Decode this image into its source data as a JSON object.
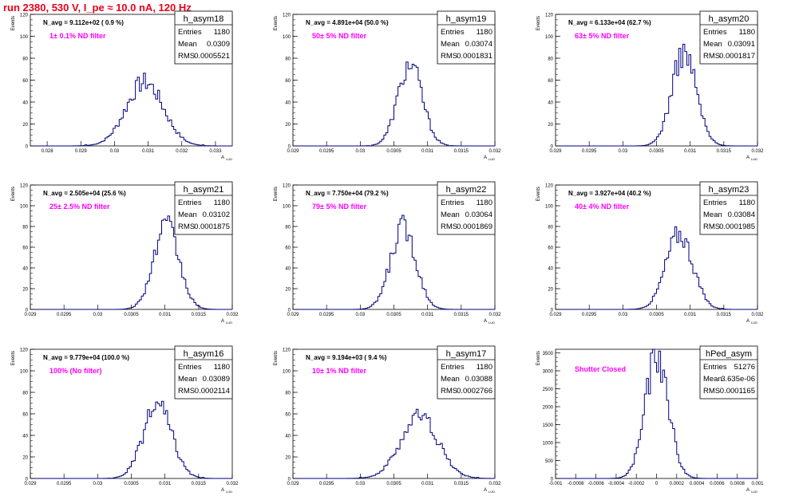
{
  "page_title": "run 2380,   530 V, I_pe ≈ 10.0 nA, 120 Hz",
  "ui": {
    "ylabel": "Events",
    "xlabel_main": "A",
    "xlabel_sub": "LUD",
    "stat_labels": [
      "Entries",
      "Mean",
      "RMS"
    ]
  },
  "colors": {
    "title": "#e8001a",
    "histogram": "#00007f",
    "filter_label": "#ff00ff",
    "frame": "#000000"
  },
  "chart_data": [
    {
      "type": "histogram",
      "name": "h_asym18",
      "navg": "N_avg = 9.112e+02 ( 0.9 %)",
      "filter": "1± 0.1% ND filter",
      "stats": {
        "entries": "1180",
        "mean": "0.0309",
        "rms": "0.0005521"
      },
      "xlim": [
        0.0275,
        0.0335
      ],
      "ylim": [
        0,
        120
      ],
      "xticks": [
        "0.028",
        "0.029",
        "0.03",
        "0.031",
        "0.032",
        "0.033"
      ],
      "yticks": [
        "0",
        "20",
        "40",
        "60",
        "80",
        "100",
        "120"
      ],
      "peak": 60,
      "mu": 0.0309,
      "sigma": 0.00055,
      "xlabel": "",
      "ylabel": "Events"
    },
    {
      "type": "histogram",
      "name": "h_asym19",
      "navg": "N_avg = 4.891e+04 (50.0 %)",
      "filter": "50± 5% ND filter",
      "stats": {
        "entries": "1180",
        "mean": "0.03074",
        "rms": "0.0001831"
      },
      "xlim": [
        0.029,
        0.032
      ],
      "ylim": [
        0,
        120
      ],
      "xticks": [
        "0.029",
        "0.0295",
        "0.03",
        "0.0305",
        "0.031",
        "0.0315",
        "0.032"
      ],
      "yticks": [
        "0",
        "20",
        "40",
        "60",
        "80",
        "100",
        "120"
      ],
      "peak": 76,
      "mu": 0.03074,
      "sigma": 0.000183,
      "xlabel": "",
      "ylabel": "Events"
    },
    {
      "type": "histogram",
      "name": "h_asym20",
      "navg": "N_avg = 6.133e+04 (62.7 %)",
      "filter": "63± 5% ND filter",
      "stats": {
        "entries": "1180",
        "mean": "0.03091",
        "rms": "0.0001817"
      },
      "xlim": [
        0.029,
        0.032
      ],
      "ylim": [
        0,
        120
      ],
      "xticks": [
        "0.029",
        "0.0295",
        "0.03",
        "0.0305",
        "0.031",
        "0.0315",
        "0.032"
      ],
      "yticks": [
        "0",
        "20",
        "40",
        "60",
        "80",
        "100",
        "120"
      ],
      "peak": 88,
      "mu": 0.03091,
      "sigma": 0.000182,
      "xlabel": "",
      "ylabel": "Events"
    },
    {
      "type": "histogram",
      "name": "h_asym21",
      "navg": "N_avg = 2.505e+04 (25.6 %)",
      "filter": "25± 2.5% ND filter",
      "stats": {
        "entries": "1180",
        "mean": "0.03102",
        "rms": "0.0001875"
      },
      "xlim": [
        0.029,
        0.032
      ],
      "ylim": [
        0,
        120
      ],
      "xticks": [
        "0.029",
        "0.0295",
        "0.03",
        "0.0305",
        "0.031",
        "0.0315",
        "0.032"
      ],
      "yticks": [
        "0",
        "20",
        "40",
        "60",
        "80",
        "100",
        "120"
      ],
      "peak": 82,
      "mu": 0.03102,
      "sigma": 0.000188,
      "xlabel": "",
      "ylabel": "Events"
    },
    {
      "type": "histogram",
      "name": "h_asym22",
      "navg": "N_avg = 7.750e+04 (79.2 %)",
      "filter": "79± 5% ND filter",
      "stats": {
        "entries": "1180",
        "mean": "0.03064",
        "rms": "0.0001869"
      },
      "xlim": [
        0.029,
        0.032
      ],
      "ylim": [
        0,
        120
      ],
      "xticks": [
        "0.029",
        "0.0295",
        "0.03",
        "0.0305",
        "0.031",
        "0.0315",
        "0.032"
      ],
      "yticks": [
        "0",
        "20",
        "40",
        "60",
        "80",
        "100",
        "120"
      ],
      "peak": 82,
      "mu": 0.03064,
      "sigma": 0.000187,
      "xlabel": "",
      "ylabel": "Events"
    },
    {
      "type": "histogram",
      "name": "h_asym23",
      "navg": "N_avg = 3.927e+04 (40.2 %)",
      "filter": "40± 4% ND filter",
      "stats": {
        "entries": "1180",
        "mean": "0.03084",
        "rms": "0.0001985"
      },
      "xlim": [
        0.029,
        0.032
      ],
      "ylim": [
        0,
        120
      ],
      "xticks": [
        "0.029",
        "0.0295",
        "0.03",
        "0.0305",
        "0.031",
        "0.0315",
        "0.032"
      ],
      "yticks": [
        "0",
        "20",
        "40",
        "60",
        "80",
        "100",
        "120"
      ],
      "peak": 75,
      "mu": 0.03084,
      "sigma": 0.000199,
      "xlabel": "",
      "ylabel": "Events"
    },
    {
      "type": "histogram",
      "name": "h_asym16",
      "navg": "N_avg = 9.779e+04 (100.0 %)",
      "filter": "100% (No filter)",
      "stats": {
        "entries": "1180",
        "mean": "0.03089",
        "rms": "0.0002114"
      },
      "xlim": [
        0.029,
        0.032
      ],
      "ylim": [
        0,
        120
      ],
      "xticks": [
        "0.029",
        "0.0295",
        "0.03",
        "0.0305",
        "0.031",
        "0.0315",
        "0.032"
      ],
      "yticks": [
        "0",
        "20",
        "40",
        "60",
        "80",
        "100",
        "120"
      ],
      "peak": 70,
      "mu": 0.03089,
      "sigma": 0.000211,
      "xlabel": "",
      "ylabel": "Events"
    },
    {
      "type": "histogram",
      "name": "h_asym17",
      "navg": "N_avg = 9.194e+03 ( 9.4 %)",
      "filter": "10± 1% ND filter",
      "stats": {
        "entries": "1180",
        "mean": "0.03088",
        "rms": "0.0002766"
      },
      "xlim": [
        0.029,
        0.032
      ],
      "ylim": [
        0,
        120
      ],
      "xticks": [
        "0.029",
        "0.0295",
        "0.03",
        "0.0305",
        "0.031",
        "0.0315",
        "0.032"
      ],
      "yticks": [
        "0",
        "20",
        "40",
        "60",
        "80",
        "100",
        "120"
      ],
      "peak": 60,
      "mu": 0.03088,
      "sigma": 0.000277,
      "xlabel": "",
      "ylabel": "Events"
    },
    {
      "type": "histogram",
      "name": "hPed_asym",
      "navg": "",
      "filter": "Shutter Closed",
      "stats": {
        "entries": "51276",
        "mean": "3.635e-06",
        "rms": "0.0001165"
      },
      "xlim": [
        -0.001,
        0.001
      ],
      "ylim": [
        0,
        3600
      ],
      "xticks": [
        "-0.001",
        "-0.0008",
        "-0.0006",
        "-0.0004",
        "-0.0002",
        "0",
        "0.0002",
        "0.0004",
        "0.0006",
        "0.0008",
        "0.001"
      ],
      "yticks": [
        "0",
        "500",
        "1000",
        "1500",
        "2000",
        "2500",
        "3000",
        "3500"
      ],
      "peak": 3480,
      "mu": 3.6e-06,
      "sigma": 0.0001165,
      "xlabel": "",
      "ylabel": "Events"
    }
  ]
}
